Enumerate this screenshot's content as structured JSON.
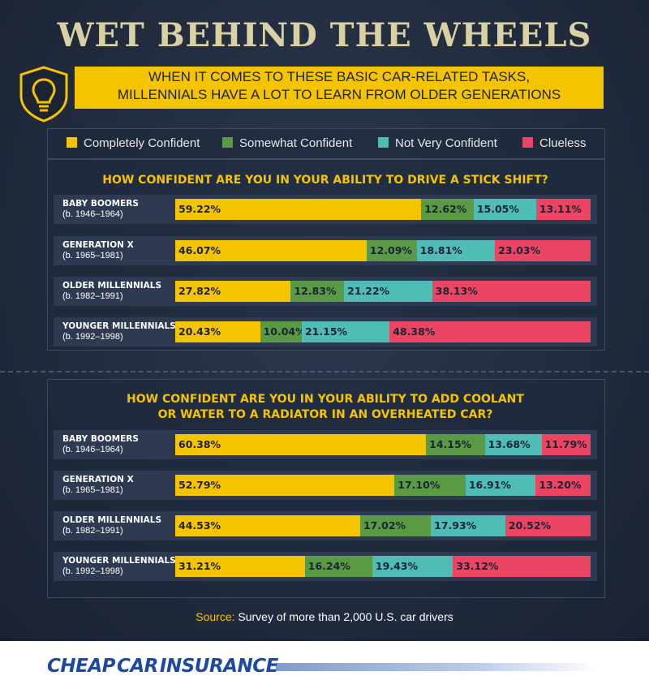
{
  "title": "WET BEHIND THE WHEELS",
  "subtitle_line1": "WHEN IT COMES TO THESE BASIC CAR-RELATED TASKS,",
  "subtitle_line2": "MILLENNIALS HAVE A LOT TO LEARN FROM OLDER GENERATIONS",
  "badge_icon": "lightbulb-icon",
  "legend": [
    {
      "label": "Completely Confident",
      "color": "#f5c400"
    },
    {
      "label": "Somewhat Confident",
      "color": "#5a9a45"
    },
    {
      "label": "Not Very Confident",
      "color": "#4fbcb6"
    },
    {
      "label": "Clueless",
      "color": "#ec4563"
    }
  ],
  "chart_data": [
    {
      "type": "bar",
      "stacked": true,
      "orientation": "horizontal",
      "title": "HOW CONFIDENT ARE YOU IN YOUR ABILITY TO DRIVE A STICK SHIFT?",
      "categories": [
        {
          "name": "BABY BOOMERS",
          "years": "(b. 1946–1964)"
        },
        {
          "name": "GENERATION X",
          "years": "(b. 1965–1981)"
        },
        {
          "name": "OLDER MILLENNIALS",
          "years": "(b. 1982–1991)"
        },
        {
          "name": "YOUNGER MILLENNIALS",
          "years": "(b. 1992–1998)"
        }
      ],
      "series": [
        {
          "name": "Completely Confident",
          "values": [
            59.22,
            46.07,
            27.82,
            20.43
          ],
          "labels": [
            "59.22%",
            "46.07%",
            "27.82%",
            "20.43%"
          ]
        },
        {
          "name": "Somewhat Confident",
          "values": [
            12.62,
            12.09,
            12.83,
            10.04
          ],
          "labels": [
            "12.62%",
            "12.09%",
            "12.83%",
            "10.04%"
          ]
        },
        {
          "name": "Not Very Confident",
          "values": [
            15.05,
            18.81,
            21.22,
            21.15
          ],
          "labels": [
            "15.05%",
            "18.81%",
            "21.22%",
            "21.15%"
          ]
        },
        {
          "name": "Clueless",
          "values": [
            13.11,
            23.03,
            38.13,
            48.38
          ],
          "labels": [
            "13.11%",
            "23.03%",
            "38.13%",
            "48.38%"
          ]
        }
      ]
    },
    {
      "type": "bar",
      "stacked": true,
      "orientation": "horizontal",
      "title_line1": "HOW CONFIDENT ARE YOU IN YOUR ABILITY TO ADD COOLANT",
      "title_line2": "OR WATER TO A RADIATOR IN AN OVERHEATED CAR?",
      "categories": [
        {
          "name": "BABY BOOMERS",
          "years": "(b. 1946–1964)"
        },
        {
          "name": "GENERATION X",
          "years": "(b. 1965–1981)"
        },
        {
          "name": "OLDER MILLENNIALS",
          "years": "(b. 1982–1991)"
        },
        {
          "name": "YOUNGER MILLENNIALS",
          "years": "(b. 1992–1998)"
        }
      ],
      "series": [
        {
          "name": "Completely Confident",
          "values": [
            60.38,
            52.79,
            44.53,
            31.21
          ],
          "labels": [
            "60.38%",
            "52.79%",
            "44.53%",
            "31.21%"
          ]
        },
        {
          "name": "Somewhat Confident",
          "values": [
            14.15,
            17.1,
            17.02,
            16.24
          ],
          "labels": [
            "14.15%",
            "17.10%",
            "17.02%",
            "16.24%"
          ]
        },
        {
          "name": "Not Very Confident",
          "values": [
            13.68,
            16.91,
            17.93,
            19.43
          ],
          "labels": [
            "13.68%",
            "16.91%",
            "17.93%",
            "19.43%"
          ]
        },
        {
          "name": "Clueless",
          "values": [
            11.79,
            13.2,
            20.52,
            33.12
          ],
          "labels": [
            "11.79%",
            "13.20%",
            "20.52%",
            "33.12%"
          ]
        }
      ]
    }
  ],
  "source_key": "Source:",
  "source_text": " Survey of more than 2,000 U.S. car drivers",
  "brand": "CHEAPCARINSURANCE"
}
